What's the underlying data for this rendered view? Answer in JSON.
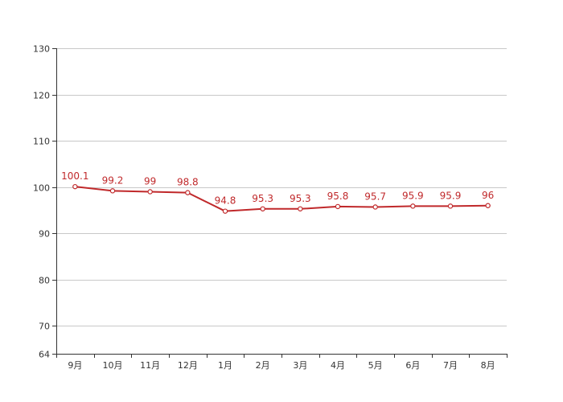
{
  "chart_data": {
    "type": "line",
    "categories": [
      "9月",
      "10月",
      "11月",
      "12月",
      "1月",
      "2月",
      "3月",
      "4月",
      "5月",
      "6月",
      "7月",
      "8月"
    ],
    "series": [
      {
        "values": [
          100.1,
          99.2,
          99,
          98.8,
          94.8,
          95.3,
          95.3,
          95.8,
          95.7,
          95.9,
          95.9,
          96
        ]
      }
    ],
    "data_labels": [
      "100.1",
      "99.2",
      "99",
      "98.8",
      "94.8",
      "95.3",
      "95.3",
      "95.8",
      "95.7",
      "95.9",
      "95.9",
      "96"
    ],
    "y_ticks": [
      "64",
      "70",
      "80",
      "90",
      "100",
      "110",
      "120",
      "130"
    ],
    "ylim": [
      64,
      130
    ],
    "grid": true,
    "colors": {
      "series": "#c0292b",
      "grid": "#c8c8c8",
      "axis": "#333333"
    }
  }
}
